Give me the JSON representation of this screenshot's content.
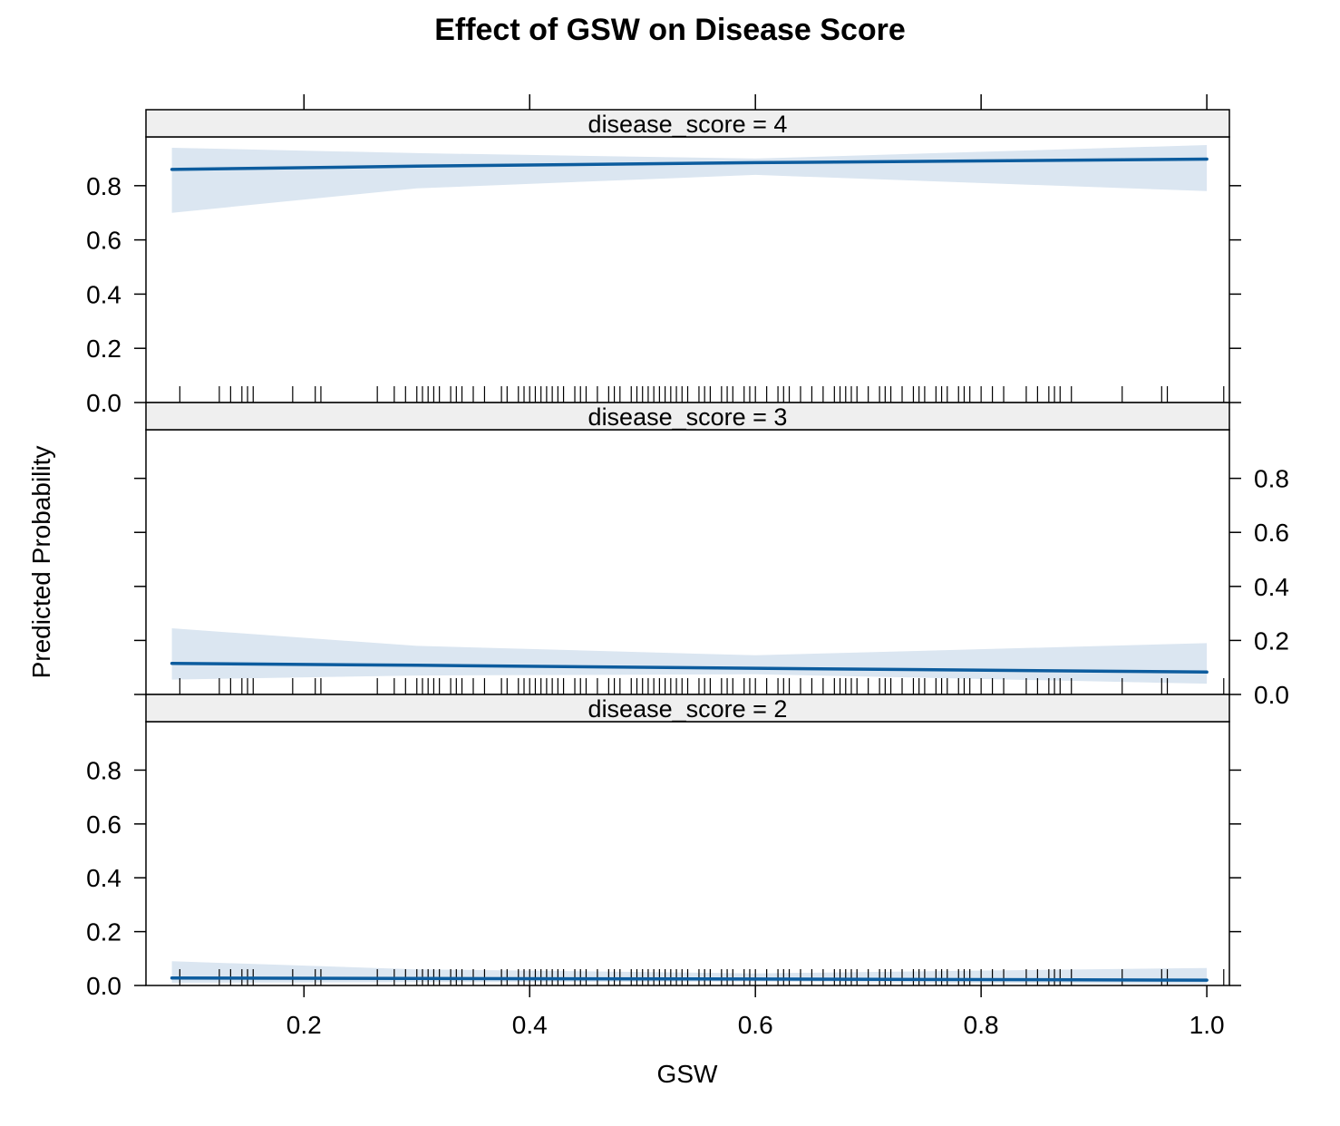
{
  "chart_data": {
    "type": "line",
    "title": "Effect of GSW on Disease Score",
    "xlabel": "GSW",
    "ylabel": "Predicted Probability",
    "xlim": [
      0.06,
      1.02
    ],
    "ylim": [
      0.0,
      0.98
    ],
    "x_ticks": [
      "0.2",
      "0.4",
      "0.6",
      "0.8",
      "1.0"
    ],
    "y_ticks": [
      "0.0",
      "0.2",
      "0.4",
      "0.6",
      "0.8"
    ],
    "grid": false,
    "legend": "none",
    "line_color": "#0c5c9e",
    "band_color": "#dbe6f1",
    "strip_color": "#efefef",
    "panels": [
      {
        "strip_label": "disease_score = 4",
        "x": [
          0.083,
          0.3,
          0.6,
          1.0
        ],
        "fit": [
          0.86,
          0.872,
          0.885,
          0.898
        ],
        "lower": [
          0.7,
          0.79,
          0.84,
          0.78
        ],
        "upper": [
          0.94,
          0.92,
          0.9,
          0.95
        ]
      },
      {
        "strip_label": "disease_score = 3",
        "x": [
          0.083,
          0.3,
          0.6,
          1.0
        ],
        "fit": [
          0.115,
          0.108,
          0.097,
          0.083
        ],
        "lower": [
          0.055,
          0.07,
          0.075,
          0.04
        ],
        "upper": [
          0.245,
          0.18,
          0.145,
          0.19
        ]
      },
      {
        "strip_label": "disease_score = 2",
        "x": [
          0.083,
          0.3,
          0.6,
          1.0
        ],
        "fit": [
          0.028,
          0.026,
          0.024,
          0.02
        ],
        "lower": [
          0.01,
          0.012,
          0.014,
          0.005
        ],
        "upper": [
          0.09,
          0.06,
          0.045,
          0.065
        ]
      }
    ],
    "rug": [
      0.09,
      0.125,
      0.135,
      0.145,
      0.15,
      0.155,
      0.19,
      0.21,
      0.215,
      0.265,
      0.28,
      0.29,
      0.3,
      0.305,
      0.31,
      0.315,
      0.32,
      0.33,
      0.335,
      0.34,
      0.35,
      0.36,
      0.375,
      0.38,
      0.39,
      0.395,
      0.4,
      0.405,
      0.41,
      0.415,
      0.42,
      0.425,
      0.43,
      0.44,
      0.445,
      0.45,
      0.46,
      0.47,
      0.475,
      0.48,
      0.49,
      0.495,
      0.5,
      0.505,
      0.51,
      0.515,
      0.52,
      0.525,
      0.53,
      0.535,
      0.54,
      0.55,
      0.555,
      0.56,
      0.57,
      0.575,
      0.58,
      0.59,
      0.595,
      0.6,
      0.61,
      0.62,
      0.625,
      0.63,
      0.64,
      0.65,
      0.66,
      0.67,
      0.675,
      0.68,
      0.685,
      0.69,
      0.7,
      0.71,
      0.715,
      0.72,
      0.73,
      0.74,
      0.745,
      0.75,
      0.76,
      0.765,
      0.77,
      0.78,
      0.785,
      0.79,
      0.8,
      0.81,
      0.82,
      0.84,
      0.85,
      0.86,
      0.865,
      0.87,
      0.88,
      0.925,
      0.96,
      0.965,
      1.015
    ]
  }
}
